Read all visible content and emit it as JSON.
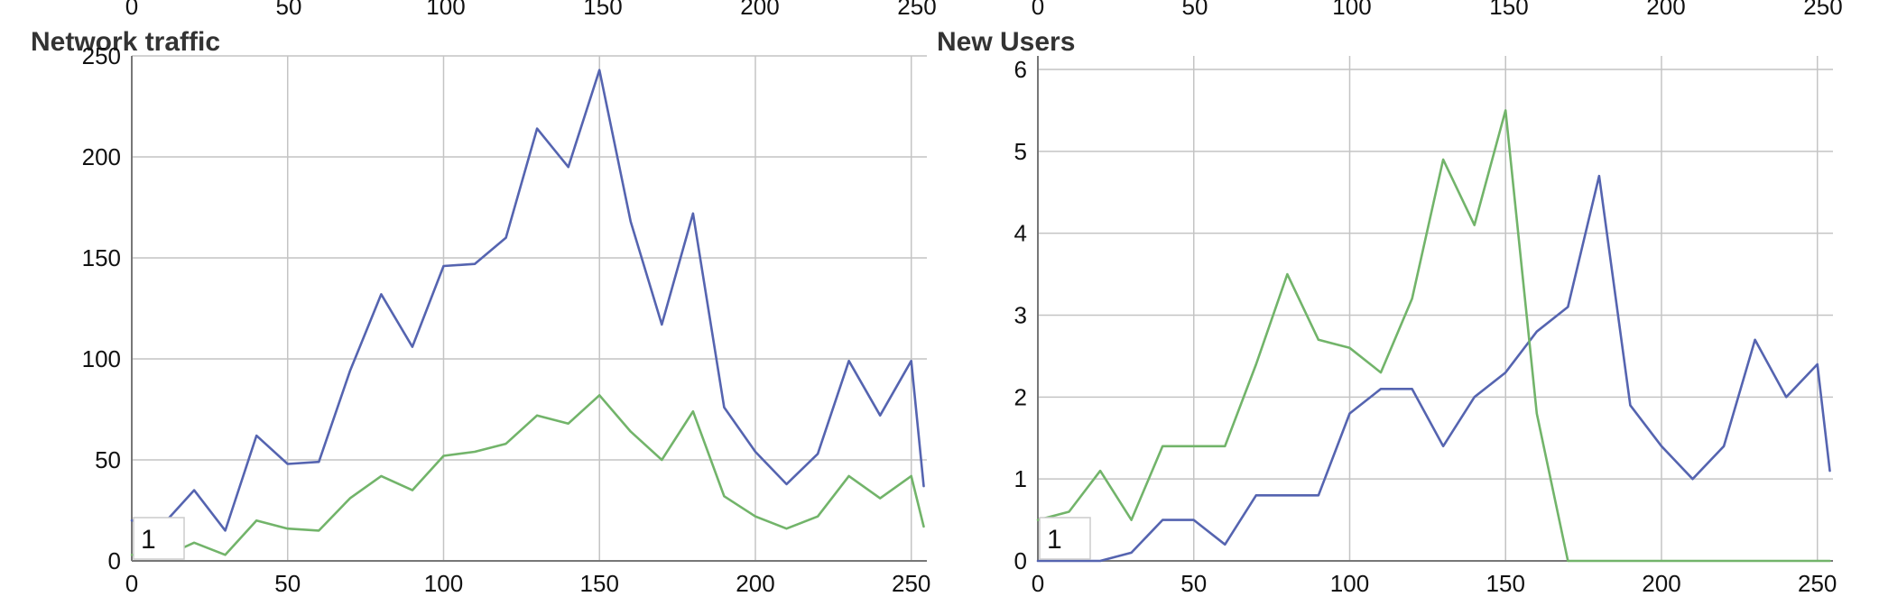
{
  "chart_data": [
    {
      "type": "line",
      "title": "Network traffic",
      "xlim": [
        0,
        255
      ],
      "ylim": [
        0,
        250
      ],
      "xticks": [
        0,
        50,
        100,
        150,
        200,
        250
      ],
      "yticks": [
        0,
        50,
        100,
        150,
        200,
        250
      ],
      "grid": true,
      "legend_label": "1",
      "series": [
        {
          "color": "#5564b0",
          "x": [
            0,
            10,
            20,
            30,
            40,
            50,
            60,
            70,
            80,
            90,
            100,
            110,
            120,
            130,
            140,
            150,
            160,
            170,
            180,
            190,
            200,
            210,
            220,
            230,
            240,
            250,
            254
          ],
          "values": [
            20,
            18,
            35,
            15,
            62,
            48,
            49,
            94,
            132,
            106,
            146,
            147,
            160,
            214,
            195,
            243,
            168,
            117,
            172,
            76,
            54,
            38,
            53,
            99,
            72,
            99,
            37
          ]
        },
        {
          "color": "#72b46a",
          "x": [
            0,
            10,
            20,
            30,
            40,
            50,
            60,
            70,
            80,
            90,
            100,
            110,
            120,
            130,
            140,
            150,
            160,
            170,
            180,
            190,
            200,
            210,
            220,
            230,
            240,
            250,
            254
          ],
          "values": [
            3,
            2,
            9,
            3,
            20,
            16,
            15,
            31,
            42,
            35,
            52,
            54,
            58,
            72,
            68,
            82,
            64,
            50,
            74,
            32,
            22,
            16,
            22,
            42,
            31,
            42,
            17
          ]
        }
      ]
    },
    {
      "type": "line",
      "title": "New Users",
      "xlim": [
        0,
        255
      ],
      "ylim": [
        0,
        6
      ],
      "xticks": [
        0,
        50,
        100,
        150,
        200,
        250
      ],
      "yticks": [
        0,
        1,
        2,
        3,
        4,
        5,
        6
      ],
      "grid": true,
      "legend_label": "1",
      "series": [
        {
          "color": "#5564b0",
          "x": [
            0,
            10,
            20,
            30,
            40,
            50,
            60,
            70,
            80,
            90,
            100,
            110,
            120,
            130,
            140,
            150,
            160,
            170,
            180,
            190,
            200,
            210,
            220,
            230,
            240,
            250,
            254
          ],
          "values": [
            0,
            0,
            0,
            0.1,
            0.5,
            0.5,
            0.2,
            0.8,
            0.8,
            0.8,
            1.8,
            2.1,
            2.1,
            1.4,
            2.0,
            2.3,
            2.8,
            3.1,
            4.7,
            1.9,
            1.4,
            1.0,
            1.4,
            2.7,
            2.0,
            2.4,
            1.1
          ]
        },
        {
          "color": "#72b46a",
          "x": [
            0,
            10,
            20,
            30,
            40,
            50,
            60,
            70,
            80,
            90,
            100,
            110,
            120,
            130,
            140,
            150,
            160,
            170,
            180,
            190,
            200,
            210,
            220,
            230,
            240,
            250,
            254
          ],
          "values": [
            0.5,
            0.6,
            1.1,
            0.5,
            1.4,
            1.4,
            1.4,
            2.4,
            3.5,
            2.7,
            2.6,
            2.3,
            3.2,
            4.9,
            4.1,
            5.5,
            1.8,
            0,
            0,
            0,
            0,
            0,
            0,
            0,
            0,
            0,
            0
          ]
        }
      ]
    }
  ]
}
